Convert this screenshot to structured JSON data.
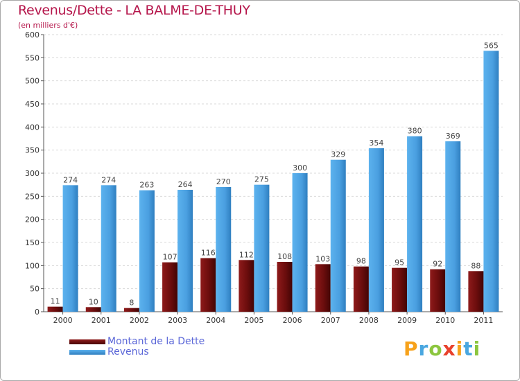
{
  "title": "Revenus/Dette - LA BALME-DE-THUY",
  "subtitle": "(en milliers d'€)",
  "brand": {
    "text": "Proxiti",
    "letters": [
      "P",
      "r",
      "o",
      "x",
      "i",
      "t",
      "i"
    ],
    "colors": [
      "#f7a21b",
      "#4aa7e0",
      "#8cc63f",
      "#e8412c",
      "#f7a21b",
      "#4aa7e0",
      "#8cc63f"
    ]
  },
  "legend": [
    {
      "label": "Montant de la Dette",
      "color": "#6b0d0d"
    },
    {
      "label": "Revenus",
      "color": "#4a9fe0"
    }
  ],
  "chart_data": {
    "type": "bar",
    "title": "Revenus/Dette - LA BALME-DE-THUY",
    "ylabel": "(en milliers d'€)",
    "xlabel": "",
    "ylim": [
      0,
      600
    ],
    "yticks": [
      0,
      50,
      100,
      150,
      200,
      250,
      300,
      350,
      400,
      450,
      500,
      550,
      600
    ],
    "grid": true,
    "legend_position": "bottom-left",
    "categories": [
      "2000",
      "2001",
      "2002",
      "2003",
      "2004",
      "2005",
      "2006",
      "2007",
      "2008",
      "2009",
      "2010",
      "2011"
    ],
    "series": [
      {
        "name": "Montant de la Dette",
        "color": "#6b0d0d",
        "values": [
          11,
          10,
          8,
          107,
          116,
          112,
          108,
          103,
          98,
          95,
          92,
          88
        ]
      },
      {
        "name": "Revenus",
        "color": "#4a9fe0",
        "values": [
          274,
          274,
          263,
          264,
          270,
          275,
          300,
          329,
          354,
          380,
          369,
          565
        ]
      }
    ]
  }
}
